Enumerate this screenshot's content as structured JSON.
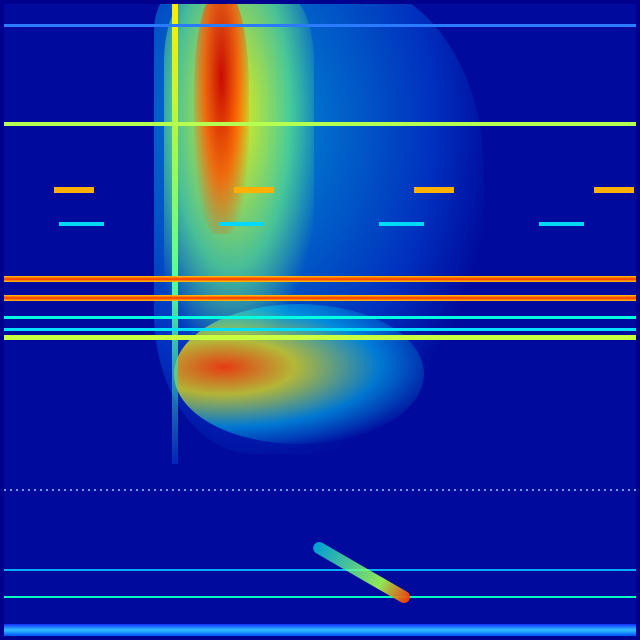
{
  "colormap": {
    "name": "jet",
    "colors": [
      "#00008f",
      "#0000ff",
      "#00ffff",
      "#ffff00",
      "#ff0000",
      "#800000"
    ]
  }
}
